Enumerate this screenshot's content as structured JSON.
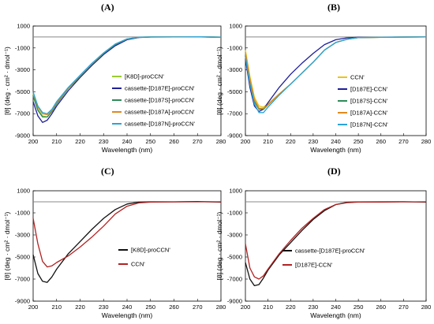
{
  "chart_data": [
    {
      "panel": "(A)",
      "type": "line",
      "xlabel": "Wavelength (nm)",
      "ylabel": "[θ] (deg · cm² · dmol⁻¹)",
      "xlim": [
        200,
        280
      ],
      "ylim": [
        -9000,
        1000
      ],
      "xticks": [
        200,
        210,
        220,
        230,
        240,
        250,
        260,
        270,
        280
      ],
      "yticks": [
        1000,
        -1000,
        -3000,
        -5000,
        -7000,
        -9000
      ],
      "grid": false,
      "legend": "center-right",
      "series": [
        {
          "name": "[K8D]-proCCN'",
          "color": "#9acd32",
          "x": [
            200,
            202,
            204,
            206,
            208,
            210,
            215,
            220,
            225,
            230,
            235,
            240,
            245,
            250,
            260,
            270,
            280
          ],
          "y": [
            -5200,
            -6600,
            -7200,
            -7300,
            -6800,
            -6100,
            -4700,
            -3600,
            -2500,
            -1500,
            -700,
            -200,
            -30,
            -5,
            0,
            20,
            -20
          ]
        },
        {
          "name": "cassette-[D187E]-proCCN'",
          "color": "#1f1f9a",
          "x": [
            200,
            202,
            204,
            206,
            208,
            210,
            215,
            220,
            225,
            230,
            235,
            240,
            245,
            250,
            260,
            270,
            280
          ],
          "y": [
            -5900,
            -7200,
            -7800,
            -7600,
            -7000,
            -6300,
            -4900,
            -3700,
            -2600,
            -1600,
            -800,
            -250,
            -50,
            -10,
            0,
            10,
            -30
          ]
        },
        {
          "name": "cassette-[D187S]-proCCN'",
          "color": "#2e8b57",
          "x": [
            200,
            202,
            204,
            206,
            208,
            210,
            215,
            220,
            225,
            230,
            235,
            240,
            245,
            250,
            260,
            270,
            280
          ],
          "y": [
            -5400,
            -6700,
            -7300,
            -7300,
            -6800,
            -6100,
            -4700,
            -3600,
            -2500,
            -1500,
            -700,
            -200,
            -30,
            0,
            0,
            20,
            -20
          ]
        },
        {
          "name": "cassette-[D187A]-proCCN'",
          "color": "#e08a1e",
          "x": [
            200,
            202,
            204,
            206,
            208,
            210,
            215,
            220,
            225,
            230,
            235,
            240,
            245,
            250,
            260,
            270,
            280
          ],
          "y": [
            -5100,
            -6400,
            -7000,
            -7100,
            -6700,
            -6000,
            -4650,
            -3550,
            -2450,
            -1450,
            -650,
            -180,
            -20,
            0,
            0,
            20,
            -20
          ]
        },
        {
          "name": "cassette-[D187N]-proCCN'",
          "color": "#2aa4d8",
          "x": [
            200,
            202,
            204,
            206,
            208,
            210,
            215,
            220,
            225,
            230,
            235,
            240,
            245,
            250,
            260,
            270,
            280
          ],
          "y": [
            -5000,
            -6300,
            -6900,
            -7000,
            -6600,
            -5900,
            -4600,
            -3500,
            -2400,
            -1450,
            -650,
            -180,
            -20,
            0,
            0,
            20,
            -20
          ]
        }
      ]
    },
    {
      "panel": "(B)",
      "type": "line",
      "xlabel": "Wavelength (nm)",
      "ylabel": "[θ] (deg · cm² · dmol⁻¹)",
      "xlim": [
        200,
        280
      ],
      "ylim": [
        -9000,
        1000
      ],
      "xticks": [
        200,
        210,
        220,
        230,
        240,
        250,
        260,
        270,
        280
      ],
      "yticks": [
        1000,
        -1000,
        -3000,
        -5000,
        -7000,
        -9000
      ],
      "grid": false,
      "legend": "bottom-right",
      "series": [
        {
          "name": "CCN'",
          "color": "#e6c619",
          "x": [
            200,
            202,
            204,
            206,
            208,
            210,
            215,
            220,
            225,
            230,
            235,
            240,
            245,
            250,
            260,
            270,
            280
          ],
          "y": [
            -1200,
            -3600,
            -5500,
            -6300,
            -6400,
            -6100,
            -5200,
            -4300,
            -3300,
            -2300,
            -1200,
            -500,
            -200,
            -60,
            -30,
            -10,
            0
          ]
        },
        {
          "name": "[D187E]-CCN'",
          "color": "#1f1f9a",
          "x": [
            200,
            202,
            204,
            206,
            208,
            210,
            215,
            220,
            225,
            230,
            235,
            240,
            245,
            250,
            260,
            270,
            280
          ],
          "y": [
            -2000,
            -4600,
            -6300,
            -6800,
            -6600,
            -6000,
            -4600,
            -3400,
            -2400,
            -1500,
            -700,
            -250,
            -80,
            -30,
            -20,
            -10,
            0
          ]
        },
        {
          "name": "[D187S]-CCN'",
          "color": "#2e8b57",
          "x": [
            200,
            202,
            204,
            206,
            208,
            210,
            215,
            220,
            225,
            230,
            235,
            240,
            245,
            250,
            260,
            270,
            280
          ],
          "y": [
            -1500,
            -4000,
            -5900,
            -6600,
            -6600,
            -6200,
            -5200,
            -4300,
            -3300,
            -2300,
            -1200,
            -500,
            -200,
            -60,
            -30,
            -10,
            0
          ]
        },
        {
          "name": "[D187A]-CCN'",
          "color": "#e08a1e",
          "x": [
            200,
            202,
            204,
            206,
            208,
            210,
            215,
            220,
            225,
            230,
            235,
            240,
            245,
            250,
            260,
            270,
            280
          ],
          "y": [
            -1400,
            -3800,
            -5700,
            -6500,
            -6500,
            -6200,
            -5200,
            -4300,
            -3300,
            -2300,
            -1200,
            -500,
            -200,
            -60,
            -30,
            -10,
            0
          ]
        },
        {
          "name": "[D187N]-CCN'",
          "color": "#2aa4d8",
          "x": [
            200,
            202,
            204,
            206,
            208,
            210,
            215,
            220,
            225,
            230,
            235,
            240,
            245,
            250,
            260,
            270,
            280
          ],
          "y": [
            -1800,
            -4300,
            -6100,
            -6900,
            -6900,
            -6400,
            -5300,
            -4300,
            -3300,
            -2300,
            -1200,
            -500,
            -200,
            -60,
            -30,
            -10,
            0
          ]
        }
      ]
    },
    {
      "panel": "(C)",
      "type": "line",
      "xlabel": "Wavelength (nm)",
      "ylabel": "[θ] (deg · cm² · dmol⁻¹)",
      "xlim": [
        200,
        280
      ],
      "ylim": [
        -9000,
        1000
      ],
      "xticks": [
        200,
        210,
        220,
        230,
        240,
        250,
        260,
        270,
        280
      ],
      "yticks": [
        1000,
        -1000,
        -3000,
        -5000,
        -7000,
        -9000
      ],
      "grid": false,
      "legend": "bottom-right",
      "series": [
        {
          "name": "[K8D]-proCCN'",
          "color": "#111111",
          "x": [
            200,
            202,
            204,
            206,
            208,
            210,
            215,
            220,
            225,
            230,
            235,
            240,
            245,
            250,
            260,
            270,
            280
          ],
          "y": [
            -4800,
            -6500,
            -7200,
            -7300,
            -6800,
            -6100,
            -4700,
            -3600,
            -2500,
            -1500,
            -700,
            -200,
            -30,
            0,
            0,
            20,
            -20
          ]
        },
        {
          "name": "CCN'",
          "color": "#b22222",
          "x": [
            200,
            202,
            204,
            206,
            208,
            210,
            215,
            220,
            225,
            230,
            235,
            240,
            245,
            250,
            260,
            270,
            280
          ],
          "y": [
            -1500,
            -3800,
            -5400,
            -5900,
            -5800,
            -5500,
            -4900,
            -4100,
            -3200,
            -2200,
            -1100,
            -400,
            -100,
            -30,
            -10,
            0,
            0
          ]
        }
      ]
    },
    {
      "panel": "(D)",
      "type": "line",
      "xlabel": "Wavelength (nm)",
      "ylabel": "[θ] (deg · cm² · dmol⁻¹)",
      "xlim": [
        200,
        280
      ],
      "ylim": [
        -9000,
        1000
      ],
      "xticks": [
        200,
        210,
        220,
        230,
        240,
        250,
        260,
        270,
        280
      ],
      "yticks": [
        1000,
        -1000,
        -3000,
        -5000,
        -7000,
        -9000
      ],
      "grid": false,
      "legend": "bottom-right",
      "series": [
        {
          "name": "cassette-[D187E]-proCCN'",
          "color": "#111111",
          "x": [
            200,
            202,
            204,
            206,
            208,
            210,
            215,
            220,
            225,
            230,
            235,
            240,
            245,
            250,
            260,
            270,
            280
          ],
          "y": [
            -5500,
            -7000,
            -7600,
            -7500,
            -6900,
            -6200,
            -4800,
            -3700,
            -2600,
            -1600,
            -800,
            -250,
            -50,
            -10,
            0,
            10,
            -30
          ]
        },
        {
          "name": "[D187E]-CCN'",
          "color": "#b22222",
          "x": [
            200,
            202,
            204,
            206,
            208,
            210,
            215,
            220,
            225,
            230,
            235,
            240,
            245,
            250,
            260,
            270,
            280
          ],
          "y": [
            -3800,
            -6000,
            -6800,
            -7000,
            -6700,
            -6100,
            -4700,
            -3500,
            -2400,
            -1500,
            -700,
            -250,
            -80,
            -30,
            -20,
            -10,
            0
          ]
        }
      ]
    }
  ]
}
